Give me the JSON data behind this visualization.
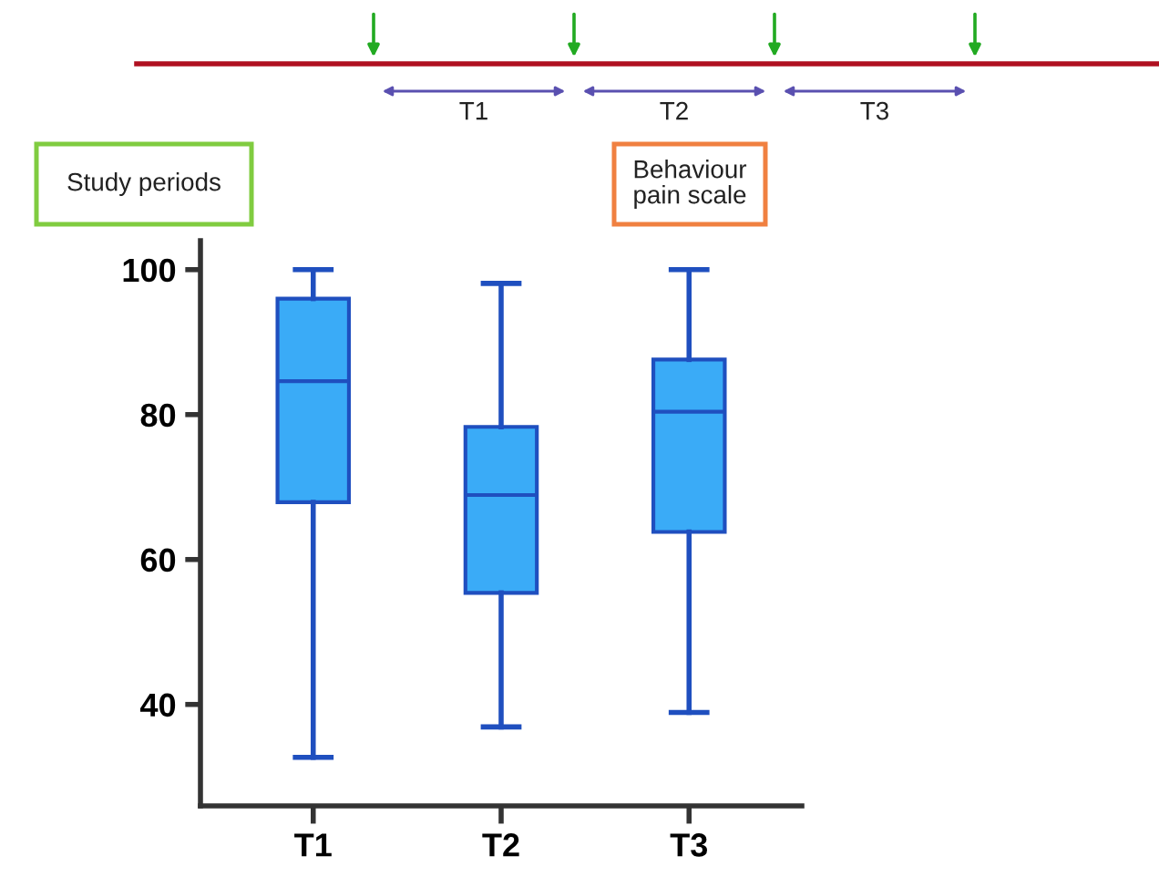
{
  "chart_data": {
    "type": "box",
    "categories": [
      "T1",
      "T2",
      "T3"
    ],
    "boxes": [
      {
        "low": 32.7,
        "q1": 67.9,
        "median": 84.6,
        "q3": 96,
        "high": 100
      },
      {
        "low": 36.9,
        "q1": 55.4,
        "median": 68.9,
        "q3": 78.3,
        "high": 98.1
      },
      {
        "low": 38.9,
        "q1": 63.8,
        "median": 80.4,
        "q3": 87.6,
        "high": 100
      }
    ],
    "color": "#3aabf7",
    "ylim": [
      26,
      104
    ],
    "yticks": [
      40,
      60,
      80,
      100
    ],
    "grid": false,
    "annotations": [
      "T1",
      "T2",
      "T3",
      "Study periods",
      "Behaviour\npain scale"
    ]
  }
}
